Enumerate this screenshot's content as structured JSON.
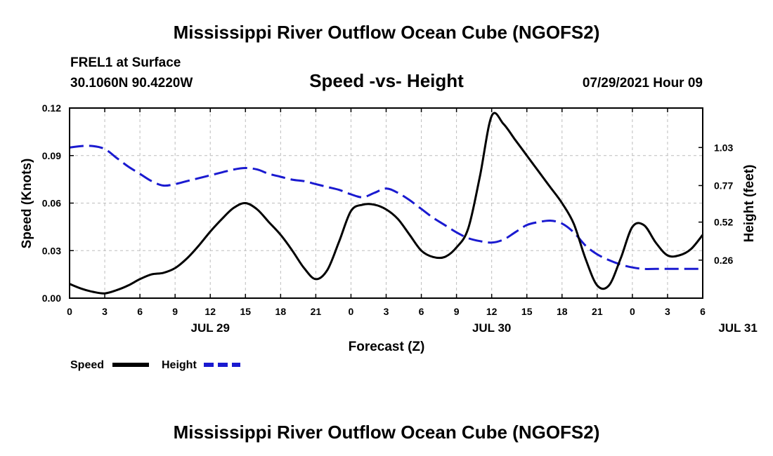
{
  "chart_data": {
    "type": "line",
    "title": "Mississippi River Outflow Ocean Cube (NGOFS2)",
    "footer_title": "Mississippi River Outflow Ocean Cube (NGOFS2)",
    "station": "FREL1 at Surface",
    "location": "30.1060N  90.4220W",
    "subtitle": "Speed -vs- Height",
    "issued": "07/29/2021 Hour 09",
    "xlabel": "Forecast (Z)",
    "ylabel_left": "Speed (Knots)",
    "ylabel_right": "Height (feet)",
    "x_tick_labels": [
      "0",
      "3",
      "6",
      "9",
      "12",
      "15",
      "18",
      "21",
      "0",
      "3",
      "6",
      "9",
      "12",
      "15",
      "18",
      "21",
      "0",
      "3",
      "6"
    ],
    "date_labels": [
      {
        "text": "JUL 29",
        "hour": 12
      },
      {
        "text": "JUL 30",
        "hour": 36
      },
      {
        "text": "JUL 31",
        "hour": 60
      }
    ],
    "xlim": [
      0,
      54
    ],
    "ylim_left": [
      0,
      0.12
    ],
    "ylim_right": [
      0.0,
      1.3
    ],
    "y_ticks_left": [
      "0.00",
      "0.03",
      "0.06",
      "0.09",
      "0.12"
    ],
    "y_ticks_right": [
      "0.26",
      "0.52",
      "0.77",
      "1.03"
    ],
    "grid": true,
    "series": [
      {
        "name": "Speed",
        "axis": "left",
        "color": "#000000",
        "style": "solid",
        "x": [
          0,
          1,
          2,
          3,
          4,
          5,
          6,
          7,
          8,
          9,
          10,
          11,
          12,
          13,
          14,
          15,
          16,
          17,
          18,
          19,
          20,
          21,
          22,
          23,
          24,
          25,
          26,
          27,
          28,
          29,
          30,
          31,
          32,
          33,
          34,
          35,
          36,
          37,
          38,
          39,
          40,
          41,
          42,
          43,
          44,
          45,
          46,
          47,
          48,
          49,
          50,
          51,
          52,
          53,
          54
        ],
        "values": [
          0.009,
          0.006,
          0.004,
          0.003,
          0.005,
          0.008,
          0.012,
          0.015,
          0.016,
          0.019,
          0.025,
          0.033,
          0.042,
          0.05,
          0.057,
          0.06,
          0.056,
          0.048,
          0.04,
          0.03,
          0.019,
          0.012,
          0.018,
          0.036,
          0.055,
          0.059,
          0.059,
          0.056,
          0.05,
          0.04,
          0.03,
          0.026,
          0.026,
          0.032,
          0.044,
          0.077,
          0.115,
          0.11,
          0.1,
          0.09,
          0.08,
          0.07,
          0.06,
          0.047,
          0.025,
          0.008,
          0.008,
          0.025,
          0.045,
          0.046,
          0.035,
          0.027,
          0.027,
          0.031,
          0.04
        ]
      },
      {
        "name": "Height",
        "axis": "right",
        "color": "#1a1ad0",
        "style": "dashed",
        "x": [
          0,
          1,
          2,
          3,
          4,
          5,
          6,
          7,
          8,
          9,
          10,
          11,
          12,
          13,
          14,
          15,
          16,
          17,
          18,
          19,
          20,
          21,
          22,
          23,
          24,
          25,
          26,
          27,
          28,
          29,
          30,
          31,
          32,
          33,
          34,
          35,
          36,
          37,
          38,
          39,
          40,
          41,
          42,
          43,
          44,
          45,
          46,
          47,
          48,
          49,
          50,
          51,
          52,
          53,
          54
        ],
        "values": [
          1.03,
          1.04,
          1.04,
          1.02,
          0.96,
          0.9,
          0.85,
          0.8,
          0.77,
          0.78,
          0.8,
          0.82,
          0.84,
          0.86,
          0.88,
          0.89,
          0.88,
          0.85,
          0.83,
          0.81,
          0.8,
          0.78,
          0.76,
          0.74,
          0.71,
          0.69,
          0.72,
          0.75,
          0.72,
          0.67,
          0.61,
          0.55,
          0.5,
          0.45,
          0.41,
          0.39,
          0.38,
          0.4,
          0.45,
          0.5,
          0.52,
          0.53,
          0.51,
          0.45,
          0.36,
          0.3,
          0.26,
          0.23,
          0.21,
          0.2,
          0.2,
          0.2,
          0.2,
          0.2,
          0.2
        ]
      }
    ],
    "legend": [
      {
        "label": "Speed",
        "color": "#000000",
        "style": "solid"
      },
      {
        "label": "Height",
        "color": "#1a1ad0",
        "style": "dashed"
      }
    ],
    "legend_position": "bottom-left"
  }
}
